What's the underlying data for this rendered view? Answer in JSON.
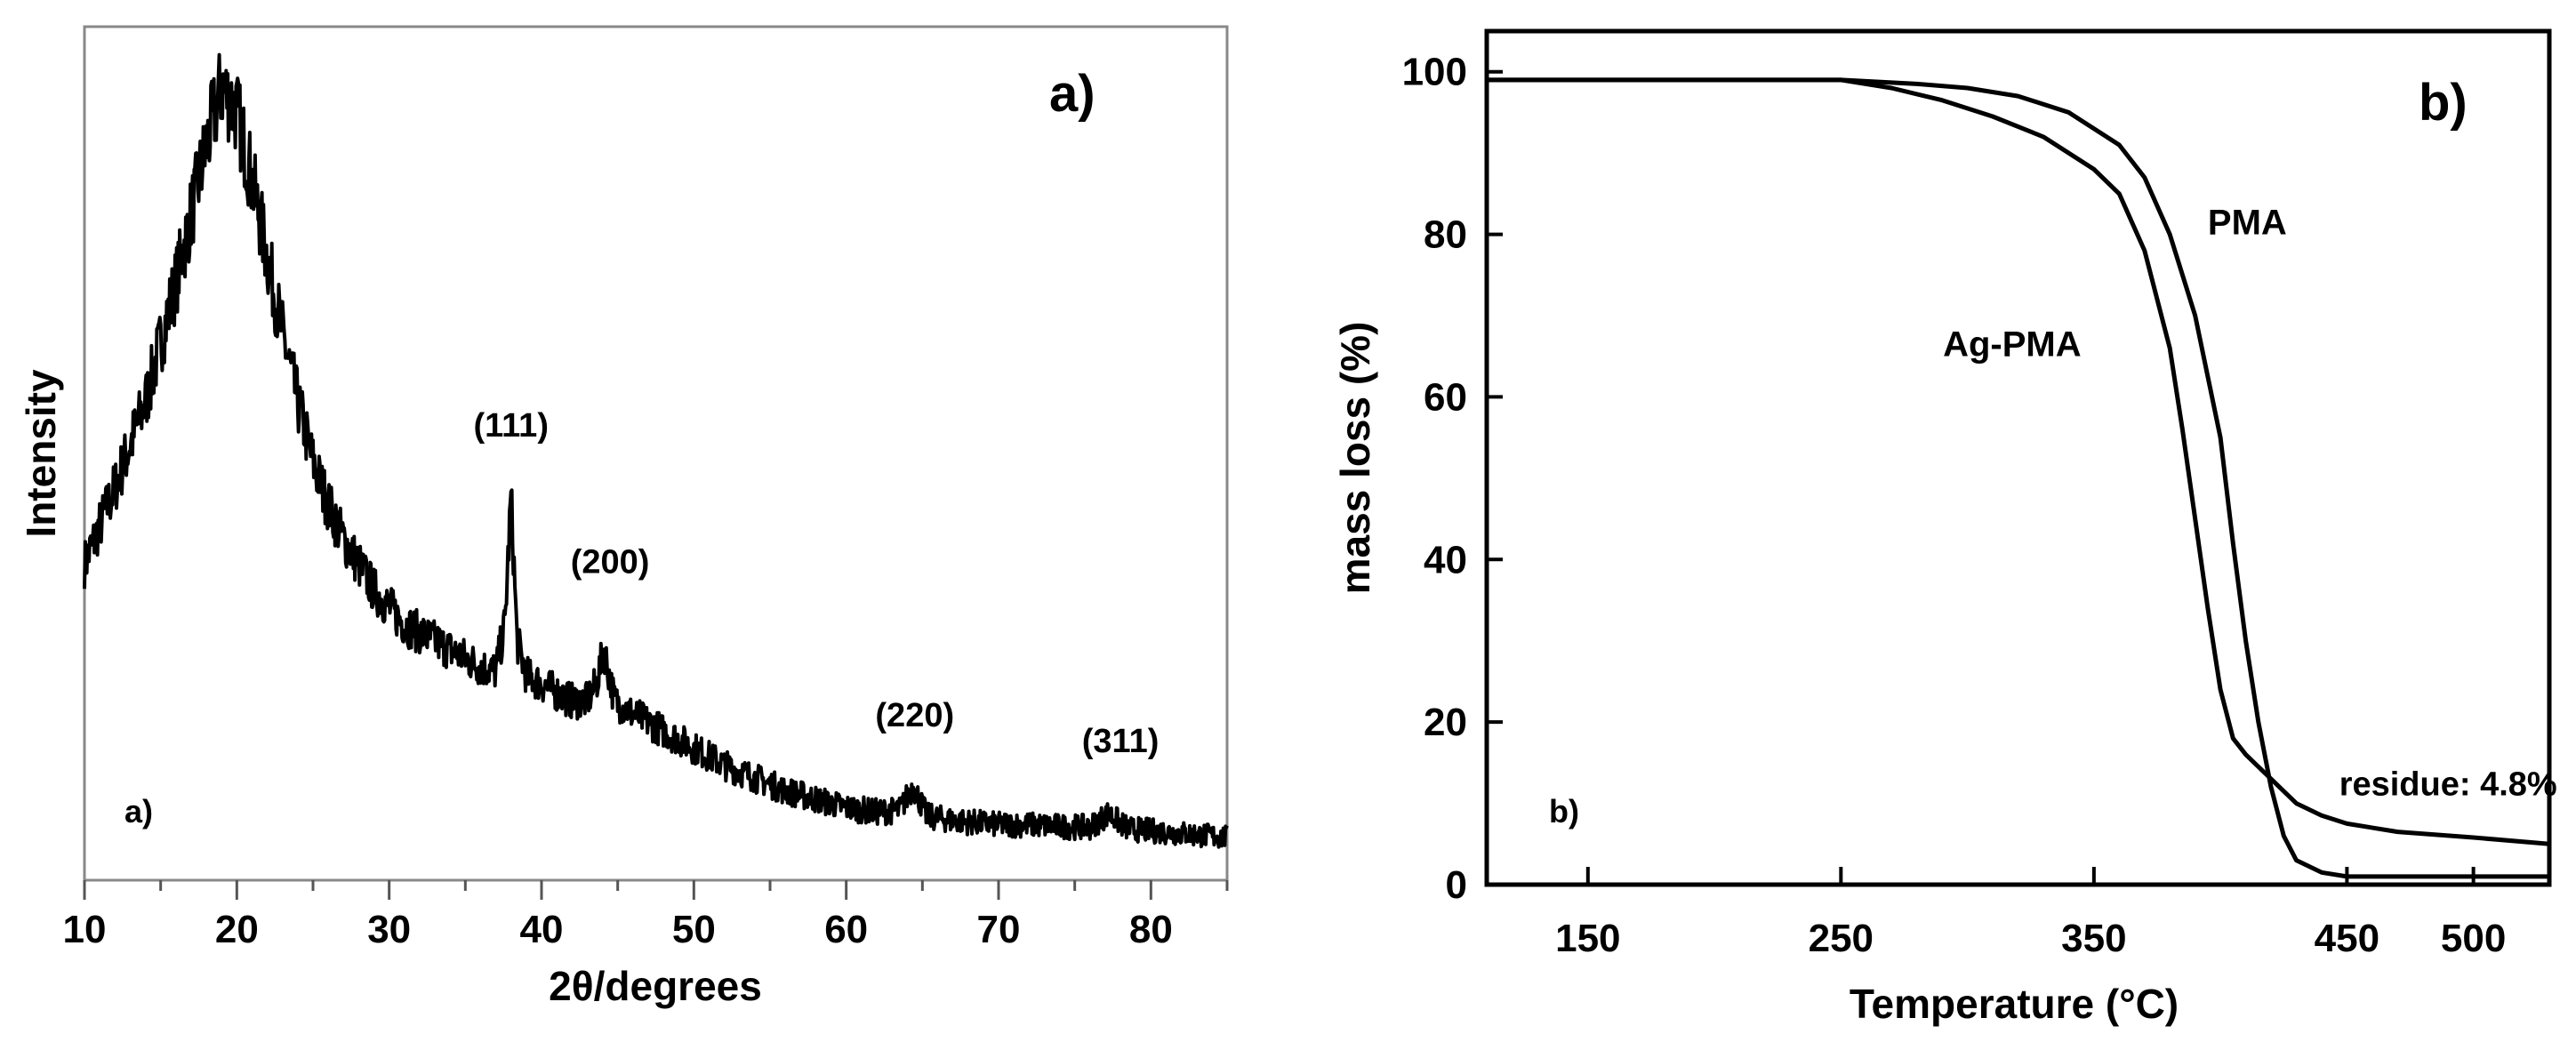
{
  "chart_data": [
    {
      "type": "line",
      "panel_label": "a)",
      "panel_label_small": "a)",
      "xlabel": "2θ/degrees",
      "ylabel": "Intensity",
      "xlim": [
        10,
        85
      ],
      "xticks": [
        10,
        20,
        30,
        40,
        50,
        60,
        70,
        80
      ],
      "ylim": [
        0,
        100
      ],
      "y_ticks_labeled": false,
      "grid": false,
      "series": [
        {
          "x": [
            10,
            12,
            14,
            16,
            17,
            18,
            19,
            20,
            21,
            22,
            23,
            24,
            25,
            26,
            27,
            28,
            29,
            30,
            31,
            32,
            33,
            34,
            35,
            36,
            37,
            37.6,
            38.0,
            38.4,
            39,
            40,
            41,
            42,
            43,
            43.6,
            44.1,
            44.8,
            46,
            48,
            50,
            52,
            54,
            56,
            58,
            60,
            62,
            63.5,
            64.4,
            65.3,
            67,
            70,
            72,
            74,
            76,
            77.2,
            78.5,
            80,
            82,
            85
          ],
          "y": [
            37,
            46,
            56,
            70,
            78,
            86,
            93,
            90,
            82,
            73,
            64,
            56,
            49,
            44,
            40,
            37,
            34,
            32,
            30,
            29,
            28,
            27,
            26,
            25,
            24.5,
            30,
            45,
            28,
            24,
            23,
            22,
            21,
            21,
            23,
            27,
            21,
            19.5,
            17.5,
            15.5,
            13.5,
            12,
            10.5,
            9.5,
            8.5,
            8,
            8.2,
            11,
            7.5,
            7,
            6.5,
            6.5,
            6.3,
            6.2,
            7.8,
            6,
            5.8,
            5.5,
            5
          ]
        }
      ],
      "annotations": [
        {
          "text": "(111)",
          "x": 38,
          "y": 52
        },
        {
          "text": "(200)",
          "x": 44.5,
          "y": 36
        },
        {
          "text": "(220)",
          "x": 64.5,
          "y": 18
        },
        {
          "text": "(311)",
          "x": 78,
          "y": 15
        }
      ]
    },
    {
      "type": "line",
      "panel_label": "b)",
      "panel_label_small": "b)",
      "xlabel": "Temperature (°C)",
      "ylabel": "mass loss (%)",
      "xlim": [
        110,
        530
      ],
      "xticks": [
        150,
        250,
        350,
        450,
        500
      ],
      "ylim": [
        0,
        105
      ],
      "yticks": [
        0,
        20,
        40,
        60,
        80,
        100
      ],
      "grid": false,
      "series": [
        {
          "name": "PMA",
          "x": [
            110,
            200,
            250,
            280,
            300,
            320,
            340,
            360,
            370,
            380,
            390,
            400,
            405,
            410,
            415,
            420,
            425,
            430,
            440,
            450,
            470,
            500,
            530
          ],
          "y": [
            99,
            99,
            99,
            98.5,
            98,
            97,
            95,
            91,
            87,
            80,
            70,
            55,
            42,
            30,
            20,
            12,
            6,
            3,
            1.5,
            1,
            1,
            1,
            1
          ]
        },
        {
          "name": "Ag-PMA",
          "x": [
            110,
            200,
            250,
            270,
            290,
            310,
            330,
            350,
            360,
            370,
            380,
            385,
            390,
            395,
            400,
            405,
            410,
            420,
            430,
            440,
            450,
            470,
            500,
            530
          ],
          "y": [
            99,
            99,
            99,
            98,
            96.5,
            94.5,
            92,
            88,
            85,
            78,
            66,
            56,
            45,
            34,
            24,
            18,
            16,
            13,
            10,
            8.5,
            7.5,
            6.5,
            5.8,
            5
          ]
        }
      ],
      "annotations": [
        {
          "text": "residue: 4.8%",
          "x": 490,
          "y": 11
        }
      ]
    }
  ]
}
